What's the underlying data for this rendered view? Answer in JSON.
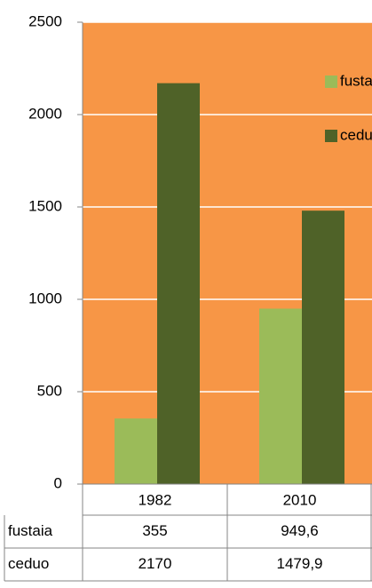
{
  "chart_data": {
    "type": "bar",
    "categories": [
      "1982",
      "2010"
    ],
    "series": [
      {
        "name": "fustaia",
        "color": "#9bbb59",
        "values": [
          355,
          949.6
        ],
        "value_labels": [
          "355",
          "949,6"
        ]
      },
      {
        "name": "ceduo",
        "color": "#4f6228",
        "values": [
          2170,
          1479.9
        ],
        "value_labels": [
          "2170",
          "1479,9"
        ]
      }
    ],
    "ylim": [
      0,
      2500
    ],
    "yticks": [
      0,
      500,
      1000,
      1500,
      2000,
      2500
    ],
    "grid": true,
    "plot_background": "#f79646",
    "legend": "upper right"
  }
}
